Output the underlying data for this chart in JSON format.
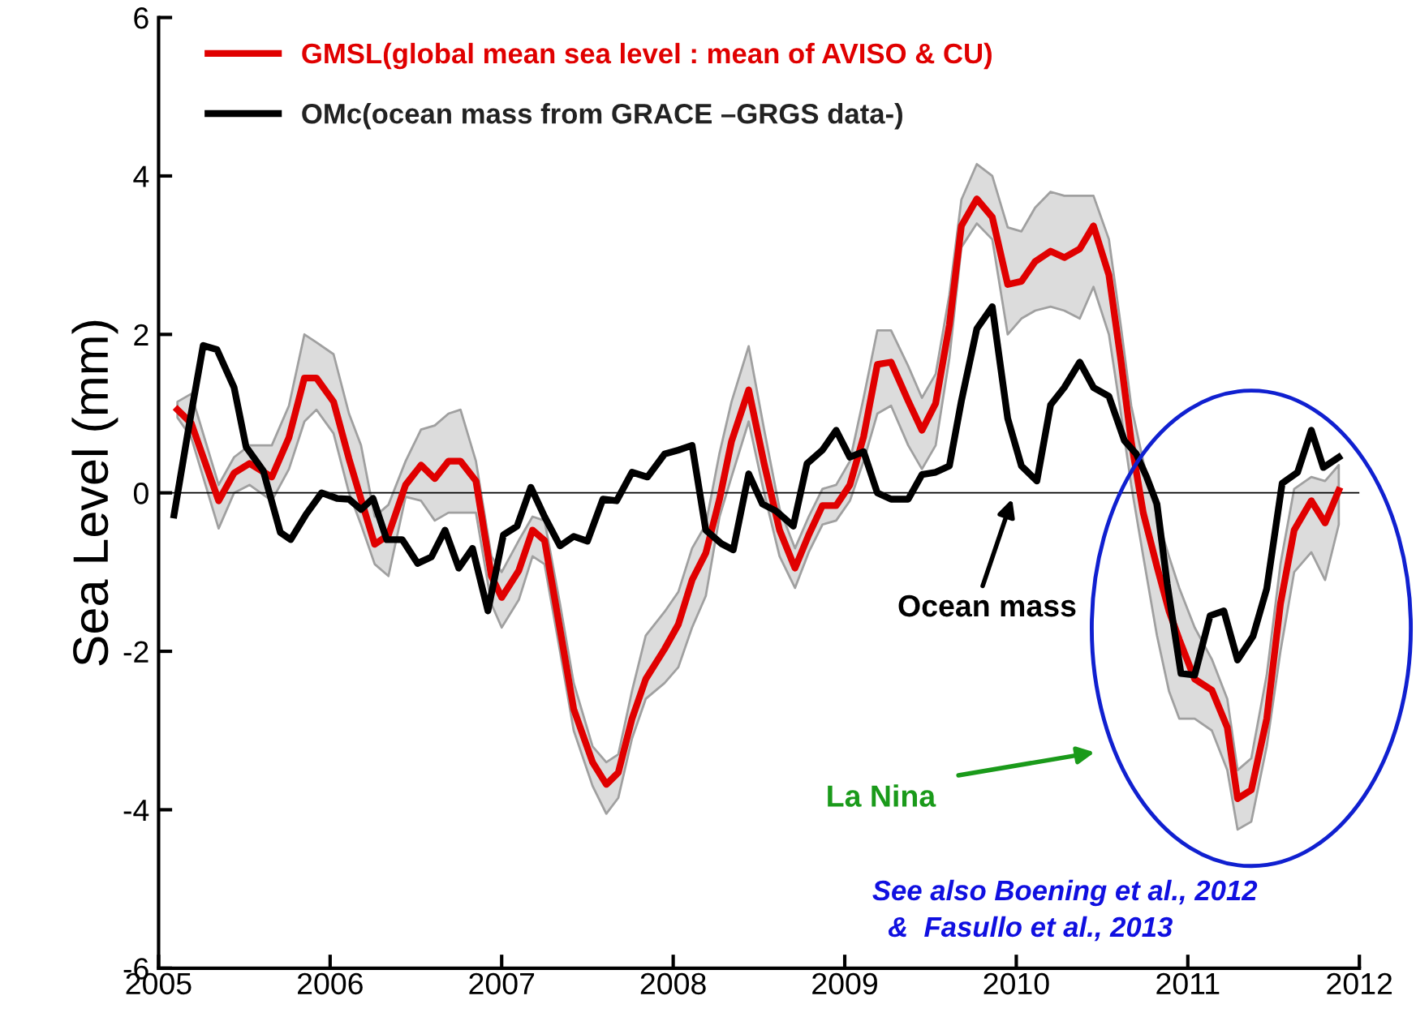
{
  "chart_data": {
    "type": "line",
    "ylabel": "Sea Level (mm)",
    "xlim": [
      2005,
      2012
    ],
    "xticks": [
      2005,
      2006,
      2007,
      2008,
      2009,
      2010,
      2011,
      2012
    ],
    "ylim": [
      -6,
      6
    ],
    "yticks": [
      -6,
      -4,
      -2,
      0,
      2,
      4,
      6
    ],
    "grid": false,
    "legend": "top left",
    "line_style": "solid",
    "marker": "none",
    "series": [
      {
        "name": "GMSL(global mean sea level : mean of AVISO & CU)",
        "color": "#e00000",
        "x": [
          2005.11,
          2005.19,
          2005.35,
          2005.44,
          2005.53,
          2005.66,
          2005.76,
          2005.85,
          2005.92,
          2006.02,
          2006.11,
          2006.18,
          2006.26,
          2006.34,
          2006.44,
          2006.53,
          2006.61,
          2006.69,
          2006.76,
          2006.85,
          2006.94,
          2007.0,
          2007.1,
          2007.18,
          2007.25,
          2007.34,
          2007.42,
          2007.53,
          2007.61,
          2007.68,
          2007.76,
          2007.84,
          2007.95,
          2008.03,
          2008.11,
          2008.19,
          2008.27,
          2008.34,
          2008.44,
          2008.53,
          2008.62,
          2008.71,
          2008.79,
          2008.87,
          2008.95,
          2009.03,
          2009.11,
          2009.19,
          2009.27,
          2009.37,
          2009.45,
          2009.53,
          2009.61,
          2009.68,
          2009.77,
          2009.86,
          2009.95,
          2010.03,
          2010.11,
          2010.2,
          2010.28,
          2010.37,
          2010.45,
          2010.54,
          2010.61,
          2010.67,
          2010.74,
          2010.82,
          2010.89,
          2010.95,
          2011.04,
          2011.14,
          2011.23,
          2011.29,
          2011.37,
          2011.46,
          2011.54,
          2011.62,
          2011.72,
          2011.8,
          2011.88
        ],
        "values": [
          1.05,
          0.88,
          -0.1,
          0.25,
          0.37,
          0.2,
          0.7,
          1.45,
          1.45,
          1.15,
          0.43,
          -0.08,
          -0.65,
          -0.53,
          0.1,
          0.35,
          0.18,
          0.4,
          0.4,
          0.15,
          -1.05,
          -1.32,
          -0.98,
          -0.47,
          -0.6,
          -1.72,
          -2.73,
          -3.4,
          -3.68,
          -3.53,
          -2.85,
          -2.35,
          -1.97,
          -1.66,
          -1.1,
          -0.76,
          -0.08,
          0.65,
          1.3,
          0.37,
          -0.47,
          -0.95,
          -0.53,
          -0.16,
          -0.16,
          0.1,
          0.71,
          1.62,
          1.65,
          1.16,
          0.79,
          1.13,
          2.12,
          3.37,
          3.71,
          3.48,
          2.63,
          2.67,
          2.92,
          3.05,
          2.97,
          3.08,
          3.37,
          2.75,
          1.67,
          0.65,
          -0.25,
          -0.93,
          -1.49,
          -1.85,
          -2.35,
          -2.49,
          -2.96,
          -3.86,
          -3.75,
          -2.85,
          -1.4,
          -0.47,
          -0.1,
          -0.38,
          0.03
        ],
        "lower": [
          0.95,
          0.7,
          -0.45,
          0.0,
          0.1,
          -0.1,
          0.3,
          0.9,
          1.05,
          0.75,
          0.0,
          -0.4,
          -0.9,
          -1.05,
          -0.05,
          -0.1,
          -0.35,
          -0.25,
          -0.25,
          -0.25,
          -1.4,
          -1.7,
          -1.35,
          -0.8,
          -0.9,
          -2.0,
          -3.0,
          -3.7,
          -4.05,
          -3.85,
          -3.1,
          -2.6,
          -2.4,
          -2.2,
          -1.7,
          -1.3,
          -0.3,
          0.2,
          0.9,
          0.0,
          -0.8,
          -1.2,
          -0.75,
          -0.4,
          -0.35,
          -0.1,
          0.4,
          1.0,
          1.1,
          0.6,
          0.3,
          0.6,
          1.7,
          3.1,
          3.4,
          3.2,
          2.0,
          2.2,
          2.3,
          2.35,
          2.3,
          2.2,
          2.6,
          2.0,
          1.0,
          0.1,
          -0.8,
          -1.8,
          -2.5,
          -2.85,
          -2.85,
          -3.0,
          -3.5,
          -4.25,
          -4.15,
          -3.2,
          -2.0,
          -1.0,
          -0.75,
          -1.1,
          -0.4
        ],
        "upper": [
          1.15,
          1.25,
          0.1,
          0.45,
          0.6,
          0.6,
          1.1,
          2.0,
          1.9,
          1.75,
          1.0,
          0.6,
          -0.3,
          -0.15,
          0.4,
          0.8,
          0.85,
          1.0,
          1.05,
          0.4,
          -0.8,
          -1.0,
          -0.6,
          -0.3,
          -0.35,
          -1.4,
          -2.4,
          -3.2,
          -3.4,
          -3.3,
          -2.5,
          -1.8,
          -1.5,
          -1.25,
          -0.7,
          -0.4,
          0.5,
          1.15,
          1.85,
          0.8,
          -0.2,
          -0.7,
          -0.3,
          0.05,
          0.1,
          0.4,
          1.2,
          2.05,
          2.05,
          1.6,
          1.2,
          1.5,
          2.5,
          3.7,
          4.15,
          4.0,
          3.35,
          3.3,
          3.6,
          3.8,
          3.75,
          3.75,
          3.75,
          3.2,
          2.1,
          1.1,
          0.4,
          -0.3,
          -0.8,
          -1.2,
          -1.7,
          -2.1,
          -2.6,
          -3.5,
          -3.35,
          -2.3,
          -0.9,
          0.05,
          0.2,
          0.15,
          0.35
        ]
      },
      {
        "name": "OMc(ocean mass from GRACE –GRGS data-)",
        "color": "#000000",
        "x": [
          2005.09,
          2005.18,
          2005.26,
          2005.34,
          2005.44,
          2005.51,
          2005.61,
          2005.71,
          2005.77,
          2005.86,
          2005.95,
          2006.04,
          2006.11,
          2006.18,
          2006.25,
          2006.33,
          2006.42,
          2006.51,
          2006.59,
          2006.67,
          2006.75,
          2006.83,
          2006.92,
          2007.01,
          2007.09,
          2007.17,
          2007.25,
          2007.34,
          2007.42,
          2007.5,
          2007.59,
          2007.67,
          2007.76,
          2007.85,
          2007.95,
          2008.03,
          2008.11,
          2008.19,
          2008.28,
          2008.35,
          2008.44,
          2008.52,
          2008.6,
          2008.7,
          2008.78,
          2008.87,
          2008.95,
          2009.03,
          2009.11,
          2009.19,
          2009.27,
          2009.37,
          2009.45,
          2009.53,
          2009.61,
          2009.68,
          2009.77,
          2009.86,
          2009.95,
          2010.03,
          2010.12,
          2010.2,
          2010.28,
          2010.37,
          2010.45,
          2010.54,
          2010.63,
          2010.7,
          2010.76,
          2010.82,
          2010.88,
          2010.96,
          2011.04,
          2011.13,
          2011.21,
          2011.29,
          2011.38,
          2011.46,
          2011.55,
          2011.64,
          2011.72,
          2011.79,
          2011.88
        ],
        "values": [
          -0.28,
          0.88,
          1.86,
          1.81,
          1.33,
          0.58,
          0.28,
          -0.5,
          -0.59,
          -0.27,
          0.0,
          -0.07,
          -0.08,
          -0.21,
          -0.07,
          -0.59,
          -0.59,
          -0.89,
          -0.81,
          -0.47,
          -0.95,
          -0.7,
          -1.49,
          -0.53,
          -0.42,
          0.07,
          -0.3,
          -0.67,
          -0.55,
          -0.61,
          -0.08,
          -0.1,
          0.26,
          0.2,
          0.49,
          0.54,
          0.6,
          -0.47,
          -0.64,
          -0.72,
          0.24,
          -0.14,
          -0.23,
          -0.42,
          0.37,
          0.54,
          0.79,
          0.45,
          0.52,
          0.0,
          -0.08,
          -0.08,
          0.23,
          0.26,
          0.34,
          1.16,
          2.07,
          2.35,
          0.94,
          0.34,
          0.15,
          1.11,
          1.33,
          1.65,
          1.33,
          1.22,
          0.66,
          0.49,
          0.2,
          -0.14,
          -1.15,
          -2.28,
          -2.3,
          -1.55,
          -1.49,
          -2.11,
          -1.81,
          -1.21,
          0.12,
          0.26,
          0.79,
          0.32,
          0.45
        ]
      }
    ],
    "ref_lines": [
      {
        "axis": "y",
        "value": 0,
        "color": "#000000"
      }
    ],
    "annotations": [
      "Ocean mass",
      "La Nina",
      "See also Boening et al., 2012\n  &  Fasullo et al., 2013"
    ]
  }
}
